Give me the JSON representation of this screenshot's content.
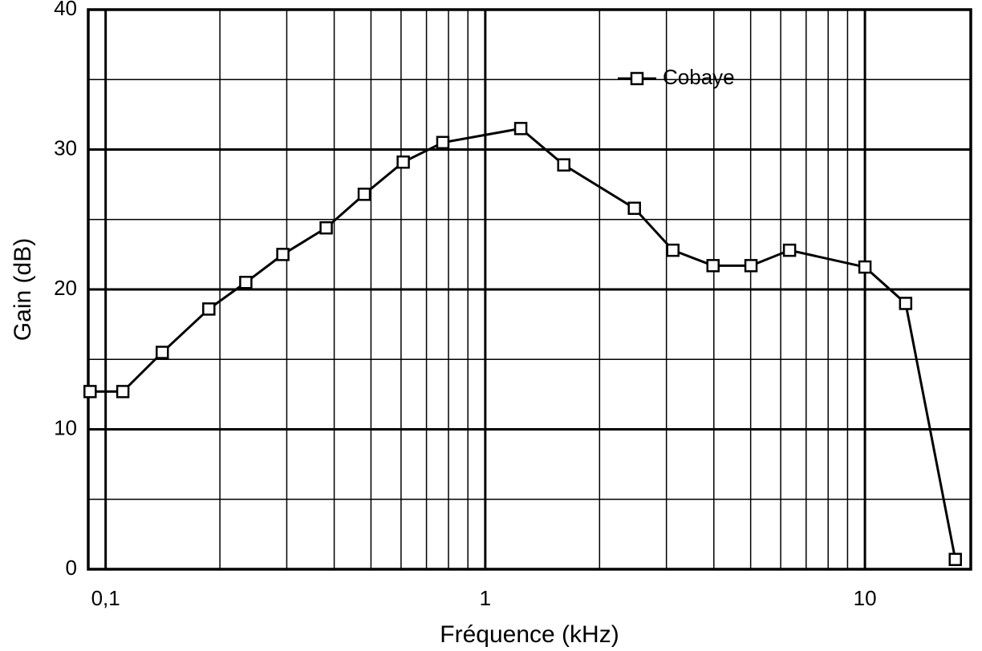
{
  "chart_data": {
    "type": "line",
    "xlabel": "Fréquence (kHz)",
    "ylabel": "Gain (dB)",
    "x": [
      0.091,
      0.111,
      0.141,
      0.187,
      0.234,
      0.293,
      0.381,
      0.48,
      0.608,
      0.773,
      1.24,
      1.61,
      2.47,
      3.12,
      3.98,
      5.01,
      6.33,
      10.0,
      12.8,
      17.3
    ],
    "series": [
      {
        "name": "Cobaye",
        "color": "#000000",
        "values": [
          12.7,
          12.7,
          15.5,
          18.6,
          20.5,
          22.5,
          24.4,
          26.8,
          29.1,
          30.5,
          31.5,
          28.9,
          25.8,
          22.8,
          21.7,
          21.7,
          22.8,
          21.6,
          19.0,
          0.7
        ]
      }
    ],
    "xscale": "log",
    "xlim": [
      0.09,
      19
    ],
    "xticks": [
      {
        "value": 0.1,
        "label": "0,1"
      },
      1,
      10
    ],
    "xgrid_minor": [
      0.2,
      0.3,
      0.4,
      0.5,
      0.6,
      0.7,
      0.8,
      0.9,
      2,
      3,
      4,
      5,
      6,
      7,
      8,
      9
    ],
    "ylim": [
      0,
      40
    ],
    "yticks": [
      0,
      10,
      20,
      30,
      40
    ],
    "ygrid_minor": [
      5,
      15,
      25,
      35
    ],
    "grid": true,
    "legend": "upper right"
  }
}
